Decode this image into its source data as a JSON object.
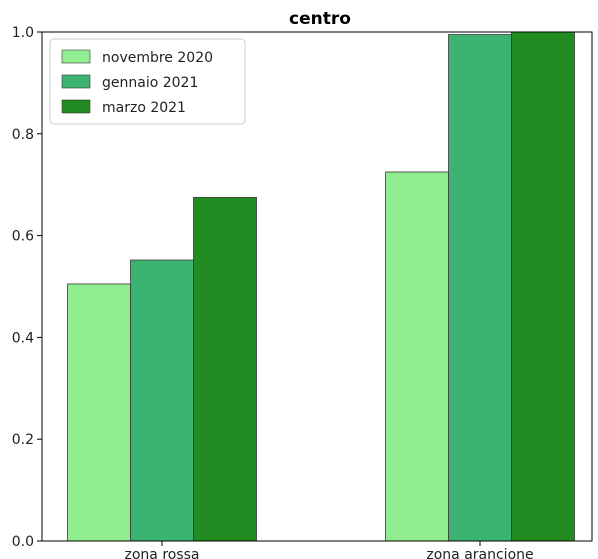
{
  "chart_data": {
    "type": "bar",
    "title": "centro",
    "xlabel": "",
    "ylabel": "",
    "categories": [
      "zona rossa",
      "zona arancione"
    ],
    "series": [
      {
        "name": "novembre 2020",
        "values": [
          0.505,
          0.725
        ],
        "color": "#90ee90"
      },
      {
        "name": "gennaio 2021",
        "values": [
          0.552,
          0.995
        ],
        "color": "#3cb371"
      },
      {
        "name": "marzo 2021",
        "values": [
          0.675,
          1.0
        ],
        "color": "#228b22"
      }
    ],
    "ylim": [
      0,
      1.0
    ],
    "yticks": [
      "0.0",
      "0.2",
      "0.4",
      "0.6",
      "0.8",
      "1.0"
    ],
    "legend_position": "top-left",
    "grid": false
  }
}
